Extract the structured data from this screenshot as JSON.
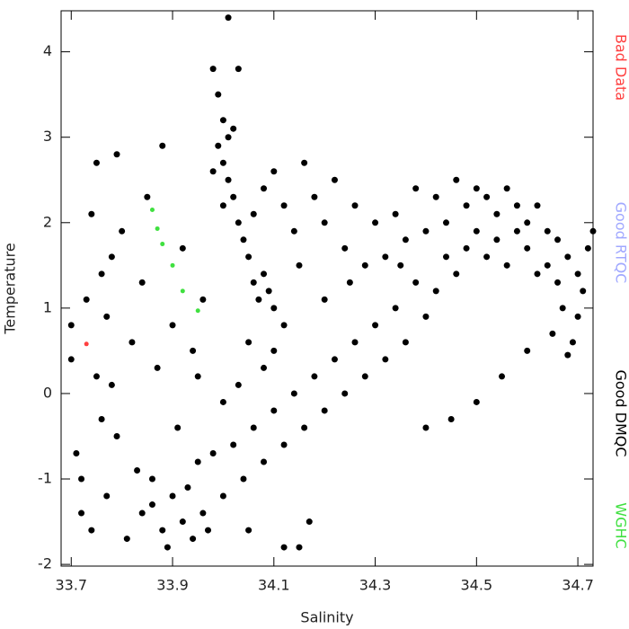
{
  "chart_data": {
    "type": "scatter",
    "xlabel": "Salinity",
    "ylabel": "Temperature",
    "xlim": [
      33.68,
      34.73
    ],
    "xticks": [
      33.7,
      33.9,
      34.1,
      34.3,
      34.5,
      34.7
    ],
    "ylim": [
      -2.02,
      4.48
    ],
    "yticks": [
      -2,
      -1,
      0,
      1,
      2,
      3,
      4
    ],
    "series": [
      {
        "name": "Bad Data",
        "color": "#ff4040",
        "x": [
          33.73
        ],
        "values": [
          0.58
        ]
      },
      {
        "name": "Good RTQC",
        "color": "#a0a8ff",
        "x": [],
        "values": []
      },
      {
        "name": "Good DMQC",
        "color": "#000000",
        "x": [
          33.7,
          33.71,
          33.72,
          33.73,
          33.74,
          33.75,
          33.76,
          33.77,
          33.78,
          33.79,
          33.7,
          33.72,
          33.74,
          33.75,
          33.76,
          33.77,
          33.78,
          33.79,
          33.8,
          33.81,
          33.82,
          33.83,
          33.84,
          33.85,
          33.86,
          33.87,
          33.88,
          33.89,
          33.9,
          33.91,
          33.92,
          33.93,
          33.94,
          33.95,
          33.96,
          33.97,
          33.98,
          33.99,
          34.0,
          34.01,
          33.99,
          34.0,
          34.01,
          34.02,
          34.03,
          34.02,
          34.03,
          34.01,
          33.98,
          34.0,
          34.04,
          34.05,
          34.06,
          34.07,
          34.08,
          34.09,
          34.1,
          34.06,
          34.08,
          34.1,
          34.12,
          34.14,
          34.16,
          34.18,
          34.2,
          34.22,
          34.24,
          34.26,
          34.28,
          34.3,
          34.32,
          34.34,
          34.36,
          34.38,
          34.4,
          34.42,
          34.44,
          34.46,
          34.48,
          34.5,
          34.52,
          34.54,
          34.56,
          34.58,
          34.6,
          34.62,
          34.64,
          34.66,
          34.68,
          34.7,
          34.72,
          34.71,
          34.7,
          34.69,
          34.68,
          34.67,
          34.66,
          34.65,
          34.64,
          34.73,
          34.5,
          34.52,
          34.54,
          34.56,
          34.58,
          34.6,
          34.62,
          34.48,
          34.46,
          34.44,
          34.42,
          34.4,
          34.38,
          34.36,
          34.34,
          34.32,
          34.3,
          34.28,
          34.26,
          34.24,
          34.22,
          34.2,
          34.18,
          34.16,
          34.14,
          34.12,
          34.1,
          34.08,
          34.06,
          34.04,
          34.02,
          34.0,
          33.98,
          33.96,
          33.94,
          33.92,
          33.9,
          33.88,
          33.86,
          33.84,
          34.12,
          34.15,
          34.17,
          34.05,
          34.45,
          34.5,
          34.55,
          34.6,
          34.4,
          34.35,
          34.15,
          34.12,
          34.2,
          34.25,
          34.08,
          34.03,
          34.0,
          34.05,
          33.95,
          34.1
        ],
        "values": [
          0.4,
          -0.7,
          -1.4,
          1.1,
          2.1,
          2.7,
          -0.3,
          0.9,
          1.6,
          2.8,
          0.8,
          -1.0,
          -1.6,
          0.2,
          1.4,
          -1.2,
          0.1,
          -0.5,
          1.9,
          -1.7,
          0.6,
          -0.9,
          1.3,
          2.3,
          -1.3,
          0.3,
          2.9,
          -1.8,
          0.8,
          -0.4,
          1.7,
          -1.1,
          0.5,
          -0.8,
          1.1,
          -1.6,
          3.8,
          3.5,
          3.2,
          4.4,
          2.9,
          2.7,
          2.5,
          2.3,
          2.0,
          3.1,
          3.8,
          3.0,
          2.6,
          2.2,
          1.8,
          1.6,
          1.3,
          1.1,
          1.4,
          1.2,
          1.0,
          2.1,
          2.4,
          2.6,
          2.2,
          1.9,
          2.7,
          2.3,
          2.0,
          2.5,
          1.7,
          2.2,
          1.5,
          2.0,
          1.6,
          2.1,
          1.8,
          2.4,
          1.9,
          2.3,
          2.0,
          2.5,
          2.2,
          2.4,
          2.3,
          2.1,
          2.4,
          2.2,
          2.0,
          2.2,
          1.9,
          1.8,
          1.6,
          1.4,
          1.7,
          1.2,
          0.9,
          0.6,
          0.45,
          1.0,
          1.3,
          0.7,
          1.5,
          1.9,
          1.9,
          1.6,
          1.8,
          1.5,
          1.9,
          1.7,
          1.4,
          1.7,
          1.4,
          1.6,
          1.2,
          0.9,
          1.3,
          0.6,
          1.0,
          0.4,
          0.8,
          0.2,
          0.6,
          0.0,
          0.4,
          -0.2,
          0.2,
          -0.4,
          0.0,
          -0.6,
          -0.2,
          -0.8,
          -0.4,
          -1.0,
          -0.6,
          -1.2,
          -0.7,
          -1.4,
          -1.7,
          -1.5,
          -1.2,
          -1.6,
          -1.0,
          -1.4,
          -1.8,
          -1.8,
          -1.5,
          -1.6,
          -0.3,
          -0.1,
          0.2,
          0.5,
          -0.4,
          1.5,
          1.5,
          0.8,
          1.1,
          1.3,
          0.3,
          0.1,
          -0.1,
          0.6,
          0.2,
          0.5
        ]
      },
      {
        "name": "WGHC",
        "color": "#40e040",
        "x": [
          33.86,
          33.87,
          33.88,
          33.9,
          33.92,
          33.95
        ],
        "values": [
          2.15,
          1.93,
          1.75,
          1.5,
          1.2,
          0.97
        ]
      }
    ]
  }
}
